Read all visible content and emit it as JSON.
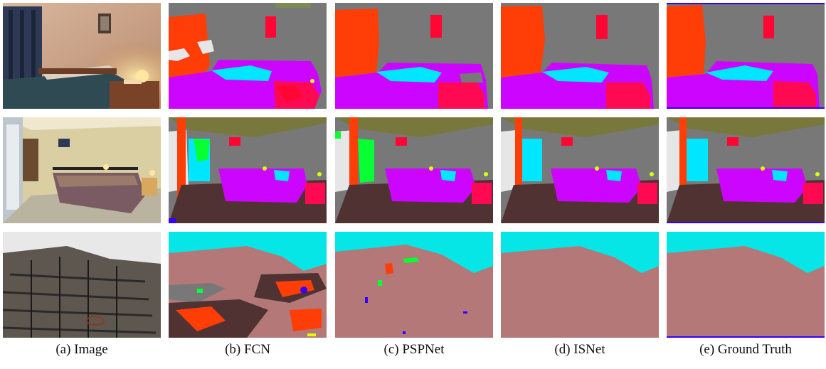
{
  "figure": {
    "captions": [
      "(a) Image",
      "(b) FCN",
      "(c) PSPNet",
      "(d) ISNet",
      "(e) Ground Truth"
    ]
  },
  "colors": {
    "wall": "#787878",
    "ceiling": "#78783c",
    "bed": "#cc05ff",
    "pillow": "#00e6ff",
    "curtain": "#ff3d06",
    "painting": "#ff0633",
    "table": "#ff0a52",
    "lamp": "#e0ff08",
    "floor": "#503232",
    "window": "#e6e6e6",
    "sky": "#06e6e6",
    "building": "#b47878",
    "noise_green": "#08ff33",
    "noise_blue": "#3300ff"
  },
  "rows": [
    {
      "row": "bedroom-1",
      "cells": [
        "photo",
        "fcn",
        "pspnet",
        "isnet",
        "ground-truth"
      ]
    },
    {
      "row": "bedroom-2",
      "cells": [
        "photo",
        "fcn",
        "pspnet",
        "isnet",
        "ground-truth"
      ]
    },
    {
      "row": "building",
      "cells": [
        "photo",
        "fcn",
        "pspnet",
        "isnet",
        "ground-truth"
      ]
    }
  ]
}
